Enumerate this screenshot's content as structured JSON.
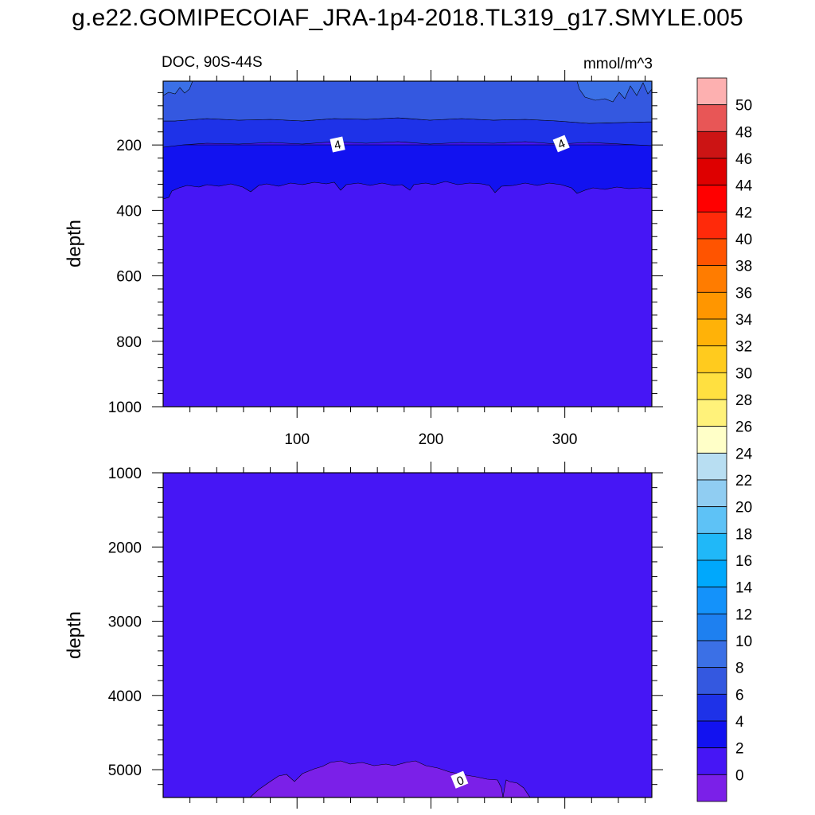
{
  "title": "g.e22.GOMIPECOIAF_JRA-1p4-2018.TL319_g17.SMYLE.005",
  "colors": {
    "lowest_fill": "#7b20e8",
    "deep_fill": "#4616f5",
    "fill_2_4": "#1212f0",
    "fill_4_6": "#1e32e8",
    "fill_6_8": "#3458e0",
    "fill_8_10": "#3b70e6",
    "contour_line": "#000000"
  },
  "chart_data": [
    {
      "type": "heatmap",
      "panel": "upper",
      "left_label": "DOC, 90S-44S",
      "right_label": "mmol/m^3",
      "xlabel": "",
      "ylabel": "depth",
      "x_ticks": [
        100,
        200,
        300
      ],
      "x_tick_labels": [
        "100",
        "200",
        "300"
      ],
      "xlim": [
        0,
        365
      ],
      "y_ticks": [
        200,
        400,
        600,
        800,
        1000
      ],
      "y_tick_labels": [
        "200",
        "400",
        "600",
        "800",
        "1000"
      ],
      "ylim": [
        5,
        1000
      ],
      "y_reversed": true,
      "regions": [
        {
          "range": "8-10",
          "depth_top": 5,
          "depth_bottom": 40,
          "x_ranges": [
            [
              0,
              20
            ],
            [
              310,
              365
            ]
          ]
        },
        {
          "range": "6-8",
          "depth_top": 5,
          "depth_bottom": 120
        },
        {
          "range": "4-6",
          "depth_top": 120,
          "depth_bottom": 195
        },
        {
          "range": "2-4",
          "depth_top": 195,
          "depth_bottom": 330
        },
        {
          "range": "0-2",
          "depth_top": 330,
          "depth_bottom": 1000
        }
      ],
      "contour_labels": [
        {
          "text": "4",
          "x": 130,
          "depth": 200
        },
        {
          "text": "4",
          "x": 298,
          "depth": 200
        }
      ]
    },
    {
      "type": "heatmap",
      "panel": "lower",
      "xlabel": "",
      "ylabel": "depth",
      "x_ticks": [
        100,
        200,
        300
      ],
      "xlim": [
        0,
        365
      ],
      "y_ticks": [
        1000,
        2000,
        3000,
        4000,
        5000
      ],
      "y_tick_labels": [
        "1000",
        "2000",
        "3000",
        "4000",
        "5000"
      ],
      "ylim": [
        1000,
        5375
      ],
      "y_reversed": true,
      "regions": [
        {
          "range": "0-2",
          "depth_top": 1000,
          "depth_bottom": 5375
        },
        {
          "range": "-2-0",
          "depth_top": 4900,
          "depth_bottom": 5375,
          "x_range": [
            65,
            275
          ]
        }
      ],
      "contour_labels": [
        {
          "text": "0",
          "x": 225,
          "depth": 5130
        }
      ]
    }
  ],
  "colorbar": {
    "labels": [
      "50",
      "48",
      "46",
      "44",
      "42",
      "40",
      "38",
      "36",
      "34",
      "32",
      "30",
      "28",
      "26",
      "24",
      "22",
      "20",
      "18",
      "16",
      "14",
      "12",
      "10",
      "8",
      "6",
      "4",
      "2",
      "0"
    ],
    "colors_top_to_bottom": [
      "#fdb0b0",
      "#e85656",
      "#cc1414",
      "#de0000",
      "#ff0000",
      "#ff2a0a",
      "#ff5400",
      "#ff7c00",
      "#ff9600",
      "#ffb208",
      "#ffcb1e",
      "#ffe040",
      "#fff27a",
      "#ffffc8",
      "#b8def2",
      "#90cdf2",
      "#5ec2f6",
      "#20b8f8",
      "#00a8fc",
      "#1492fa",
      "#1e80f0",
      "#3b70e6",
      "#3458e0",
      "#1e32e8",
      "#1212f0",
      "#4616f5",
      "#7b20e8"
    ]
  }
}
